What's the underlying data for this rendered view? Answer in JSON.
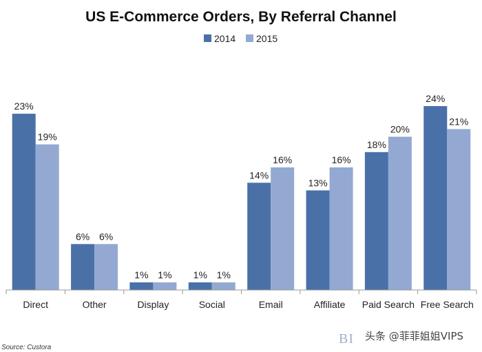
{
  "chart_data": {
    "type": "bar",
    "title": "US E-Commerce Orders, By Referral Channel",
    "categories": [
      "Direct",
      "Other",
      "Display",
      "Social",
      "Email",
      "Affiliate",
      "Paid Search",
      "Free Search"
    ],
    "series": [
      {
        "name": "2014",
        "values": [
          23,
          6,
          1,
          1,
          14,
          13,
          18,
          24
        ],
        "labels": [
          "23%",
          "6%",
          "1%",
          "1%",
          "14%",
          "13%",
          "18%",
          "24%"
        ]
      },
      {
        "name": "2015",
        "values": [
          19,
          6,
          1,
          1,
          16,
          16,
          20,
          21
        ],
        "labels": [
          "19%",
          "6%",
          "1%",
          "1%",
          "16%",
          "16%",
          "20%",
          "21%"
        ]
      }
    ],
    "xlabel": "",
    "ylabel": "",
    "ylim": [
      0,
      25
    ],
    "grid": false,
    "legend": "top-center",
    "source": "Source: Custora"
  },
  "colors": {
    "series_2014": "#4a70a8",
    "series_2015": "#93a9d2",
    "axis": "#999999"
  },
  "watermark": {
    "logo": "BI",
    "text": "头条 @菲菲姐姐VIPS"
  }
}
